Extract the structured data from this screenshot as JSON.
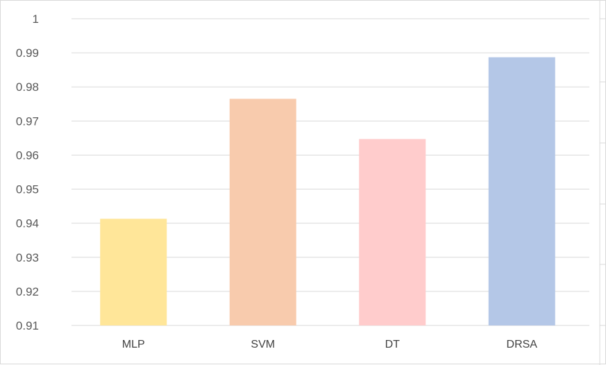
{
  "chart_data": {
    "type": "bar",
    "categories": [
      "MLP",
      "SVM",
      "DT",
      "DRSA"
    ],
    "values": [
      0.9413,
      0.9765,
      0.9647,
      0.9887
    ],
    "colors": [
      "#FFE699",
      "#F8CBAD",
      "#FFCCCC",
      "#B4C7E7"
    ],
    "ylim": [
      0.91,
      1.0
    ],
    "yticks": [
      "0.91",
      "0.92",
      "0.93",
      "0.94",
      "0.95",
      "0.96",
      "0.97",
      "0.98",
      "0.99",
      "1"
    ],
    "grid": true,
    "title": "",
    "xlabel": "",
    "ylabel": ""
  }
}
